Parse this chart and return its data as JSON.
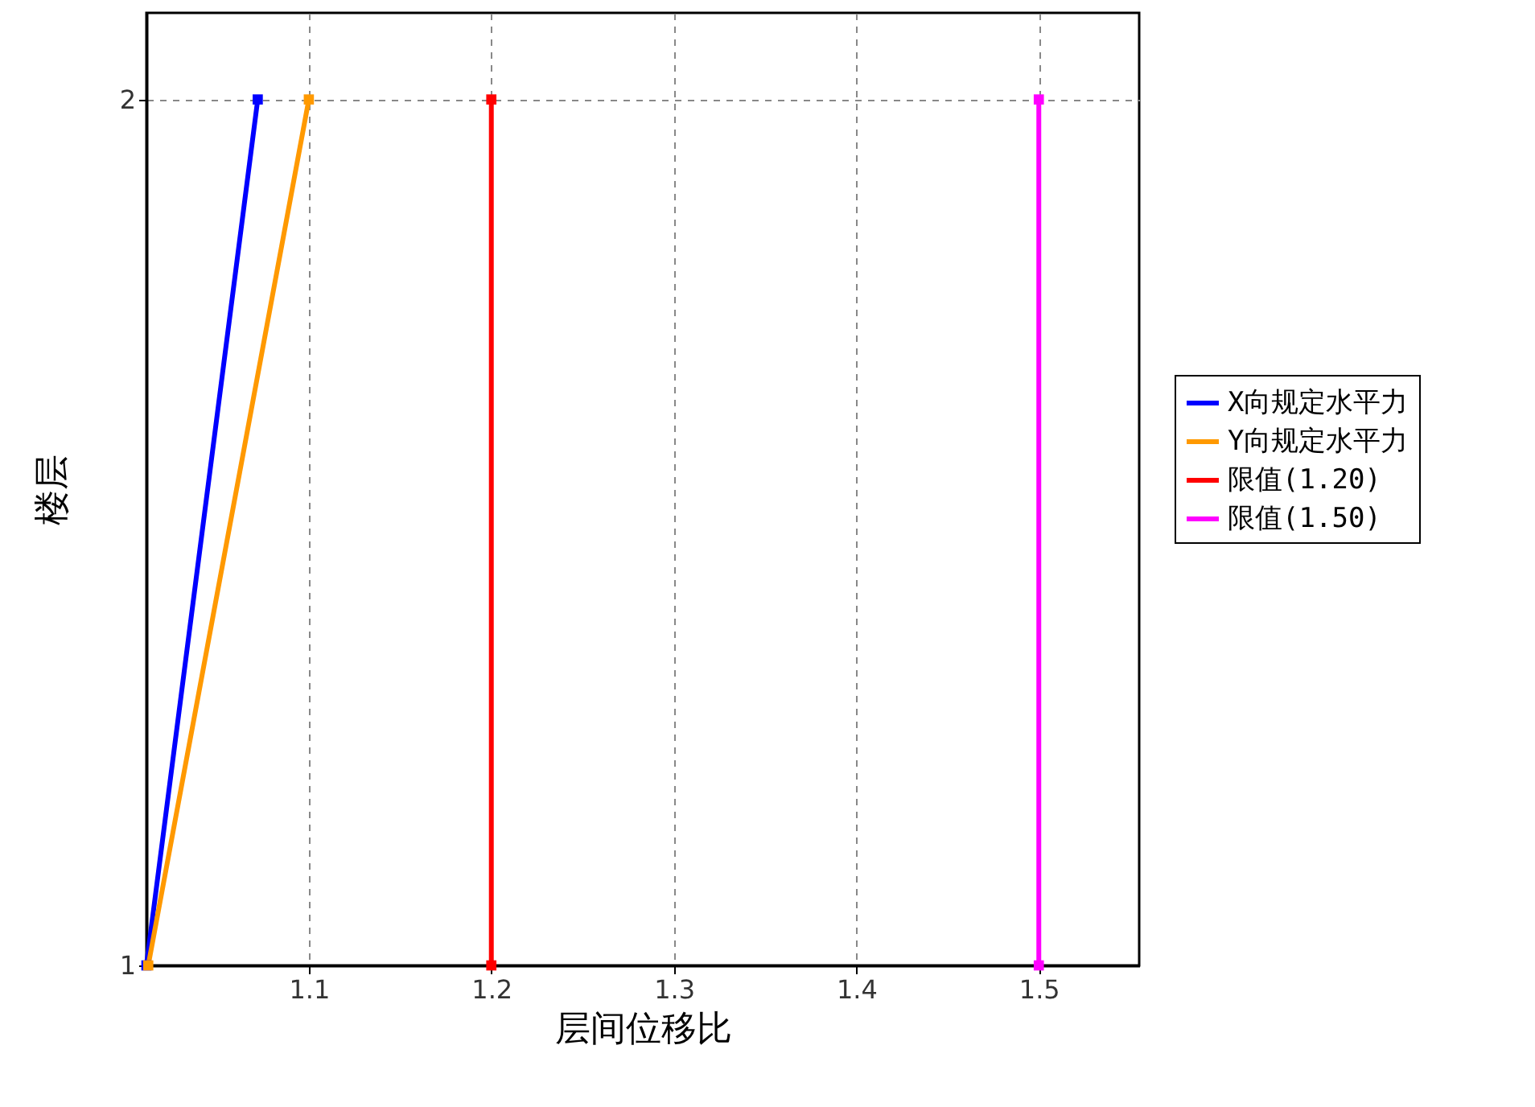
{
  "chart_data": {
    "type": "line",
    "xlabel": "层间位移比",
    "ylabel": "楼层",
    "xlim": [
      1.011,
      1.555
    ],
    "xticks": [
      1.1,
      1.2,
      1.3,
      1.4,
      1.5
    ],
    "ylim": [
      1,
      2.1
    ],
    "yticks": [
      1,
      2
    ],
    "grid": true,
    "legend": "right",
    "marker": "square",
    "line_style": "solid",
    "series": [
      {
        "name": "X向规定水平力",
        "color": "#0000ff",
        "x": [
          1.011,
          1.072
        ],
        "values": [
          1,
          2
        ]
      },
      {
        "name": "Y向规定水平力",
        "color": "#ff9900",
        "x": [
          1.012,
          1.1
        ],
        "values": [
          1,
          2
        ]
      },
      {
        "name": "限值(1.20)",
        "color": "#ff0000",
        "x": [
          1.2,
          1.2
        ],
        "values": [
          1,
          2
        ]
      },
      {
        "name": "限值(1.50)",
        "color": "#ff00ff",
        "x": [
          1.5,
          1.5
        ],
        "values": [
          1,
          2
        ]
      }
    ]
  }
}
